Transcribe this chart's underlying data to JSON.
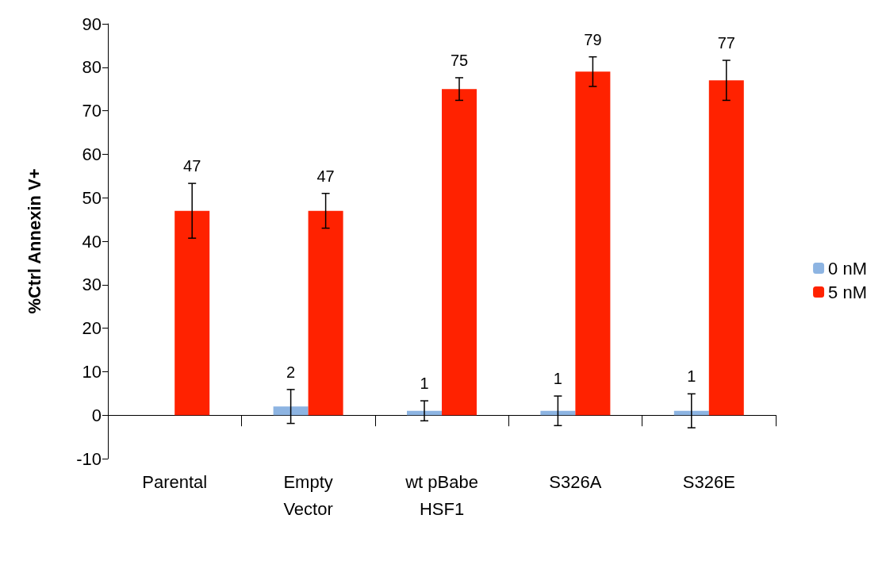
{
  "chart_data": {
    "type": "bar",
    "ylabel": "%Ctrl Annexin V+",
    "categories": [
      "Parental",
      "Empty\nVector",
      "wt pBabe\nHSF1",
      "S326A",
      "S326E"
    ],
    "series": [
      {
        "name": "0 nM",
        "color": "#8db4e2",
        "values": [
          null,
          2,
          1,
          1,
          1
        ],
        "errors": [
          null,
          3.9,
          2.3,
          3.4,
          3.9
        ]
      },
      {
        "name": "5 nM",
        "color": "#ff2200",
        "values": [
          47,
          47,
          75,
          79,
          77
        ],
        "errors": [
          6.3,
          4,
          2.6,
          3.4,
          4.6
        ]
      }
    ],
    "ylim": [
      -10,
      90
    ],
    "yticks": [
      -10,
      0,
      10,
      20,
      30,
      40,
      50,
      60,
      70,
      80,
      90
    ],
    "data_labels": true,
    "legend": "right"
  }
}
